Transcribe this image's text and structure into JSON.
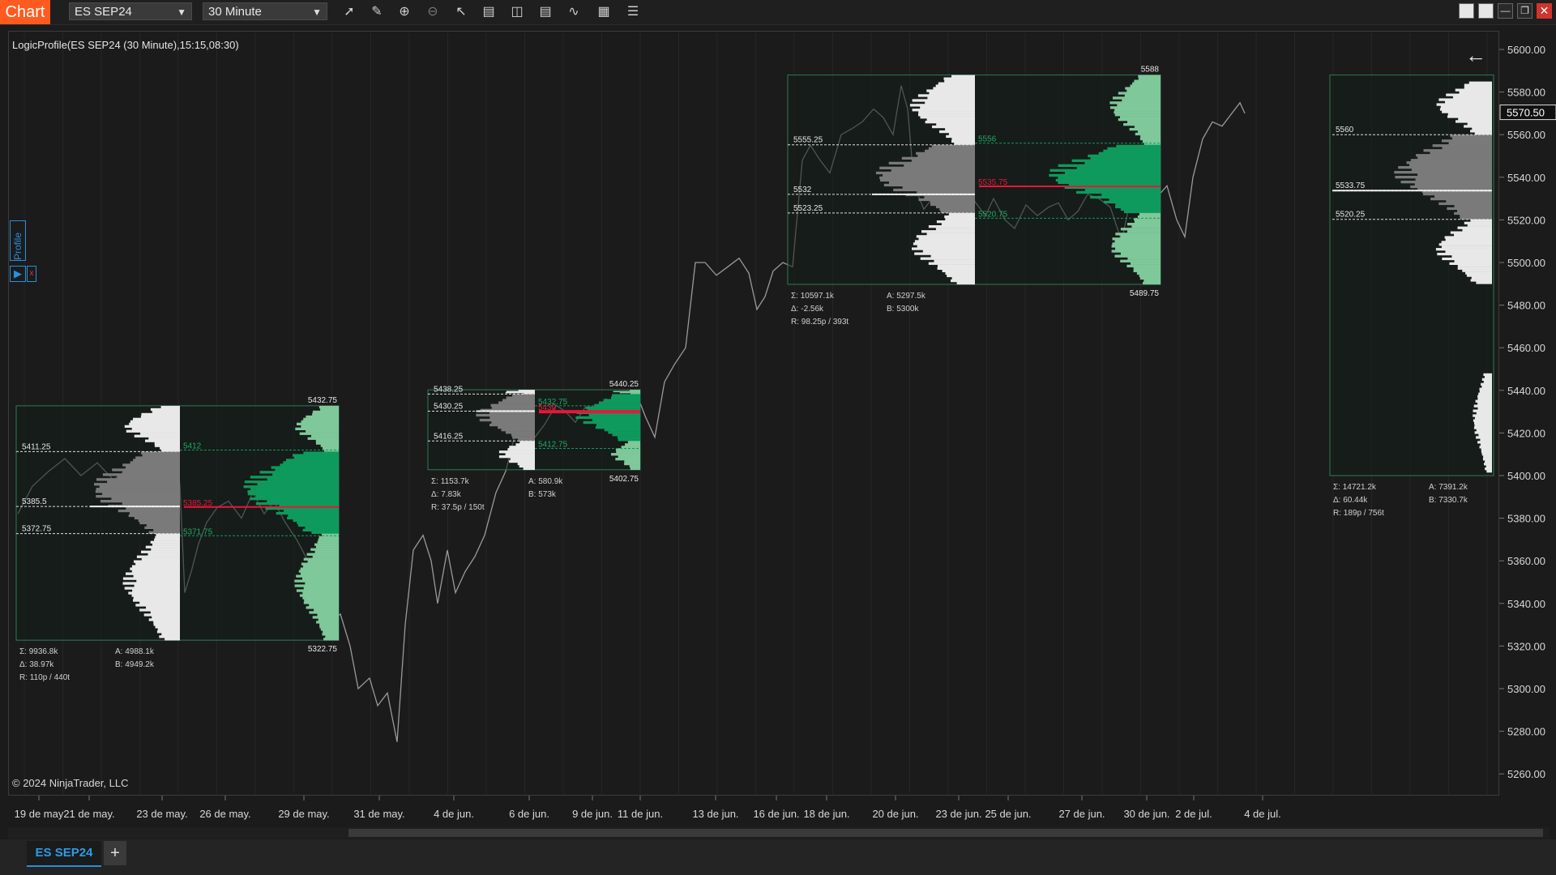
{
  "app_title": "Chart",
  "instrument_select": "ES SEP24",
  "timeframe_select": "30 Minute",
  "toolbar_icons": [
    "line-tool-icon",
    "pencil-icon",
    "zoom-in-icon",
    "zoom-out-icon",
    "pointer-icon",
    "data-box-icon",
    "chart-style-icon",
    "bar-type-icon",
    "indicators-icon",
    "strategies-icon",
    "properties-icon"
  ],
  "indicator_label": "LogicProfile(ES SEP24 (30 Minute),15:15,08:30)",
  "copyright": "© 2024 NinjaTrader, LLC",
  "profile_tab_label": "Profile",
  "bottom_tab": "ES SEP24",
  "colors": {
    "background": "#1b1b1b",
    "accent": "#ff5a1f",
    "green": "#0e9a5c",
    "light_green": "#7ec89a",
    "poc": "#e8163a",
    "grey": "#7a7a7a",
    "white_profile": "#e8e8e8",
    "price_line": "#9a9a9a"
  },
  "chart_data": {
    "type": "line",
    "ylim": [
      5250,
      5610
    ],
    "y_ticks": [
      "5600.00",
      "5580.00",
      "5560.00",
      "5540.00",
      "5520.00",
      "5500.00",
      "5480.00",
      "5460.00",
      "5440.00",
      "5420.00",
      "5400.00",
      "5380.00",
      "5360.00",
      "5340.00",
      "5320.00",
      "5300.00",
      "5280.00",
      "5260.00"
    ],
    "last_price": "5570.50",
    "x_ticks": [
      "19 de may",
      "21 de may.",
      "23 de may.",
      "26 de may.",
      "29 de may.",
      "31 de may.",
      "4 de jun.",
      "6 de jun.",
      "9 de jun.",
      "11 de jun.",
      "13 de jun.",
      "16 de jun.",
      "18 de jun.",
      "20 de jun.",
      "23 de jun.",
      "25 de jun.",
      "27 de jun.",
      "30 de jun.",
      "2 de jul.",
      "4 de jul."
    ],
    "profiles": [
      {
        "high_label": "5432.75",
        "low_label": "5322.75",
        "high": 5432.75,
        "low": 5322.75,
        "levels": [
          {
            "label": "5411.25",
            "value": 5411.25
          },
          {
            "label": "5385.5",
            "value": 5385.5
          },
          {
            "label": "5372.75",
            "value": 5372.75
          }
        ],
        "green_levels": [
          {
            "label": "5412",
            "value": 5412
          },
          {
            "label": "5385.25",
            "value": 5385.25,
            "poc": true
          },
          {
            "label": "5371.75",
            "value": 5371.75
          }
        ],
        "stats": [
          "Σ: 9936.8k",
          "Δ: 38.97k",
          "R: 110p / 440t"
        ],
        "stats_right": [
          "A: 4988.1k",
          "B: 4949.2k"
        ]
      },
      {
        "high_label": "5440.25",
        "low_label": "5402.75",
        "high": 5440.25,
        "low": 5402.75,
        "levels": [
          {
            "label": "5438.25",
            "value": 5438.25
          },
          {
            "label": "5430.25",
            "value": 5430.25
          },
          {
            "label": "5416.25",
            "value": 5416.25
          }
        ],
        "green_levels": [
          {
            "label": "5432.75",
            "value": 5432.75
          },
          {
            "label": "5430",
            "value": 5430,
            "poc": true
          },
          {
            "label": "5412.75",
            "value": 5412.75
          }
        ],
        "stats": [
          "Σ: 1153.7k",
          "Δ: 7.83k",
          "R: 37.5p / 150t"
        ],
        "stats_right": [
          "A: 580.9k",
          "B: 573k"
        ]
      },
      {
        "high_label": "5588",
        "low_label": "5489.75",
        "high": 5588,
        "low": 5489.75,
        "levels": [
          {
            "label": "5555.25",
            "value": 5555.25
          },
          {
            "label": "5532",
            "value": 5532
          },
          {
            "label": "5523.25",
            "value": 5523.25
          }
        ],
        "green_levels": [
          {
            "label": "5556",
            "value": 5556
          },
          {
            "label": "5535.75",
            "value": 5535.75,
            "poc": true
          },
          {
            "label": "5520.75",
            "value": 5520.75
          }
        ],
        "stats": [
          "Σ: 10597.1k",
          "Δ: -2.56k",
          "R: 98.25p / 393t"
        ],
        "stats_right": [
          "A: 5297.5k",
          "B: 5300k"
        ]
      },
      {
        "levels": [
          {
            "label": "5560",
            "value": 5560
          },
          {
            "label": "5533.75",
            "value": 5533.75
          },
          {
            "label": "5520.25",
            "value": 5520.25
          }
        ],
        "stats": [
          "Σ: 14721.2k",
          "Δ: 60.44k",
          "R: 189p / 756t"
        ],
        "stats_right": [
          "A: 7391.2k",
          "B: 7330.7k"
        ]
      }
    ]
  }
}
